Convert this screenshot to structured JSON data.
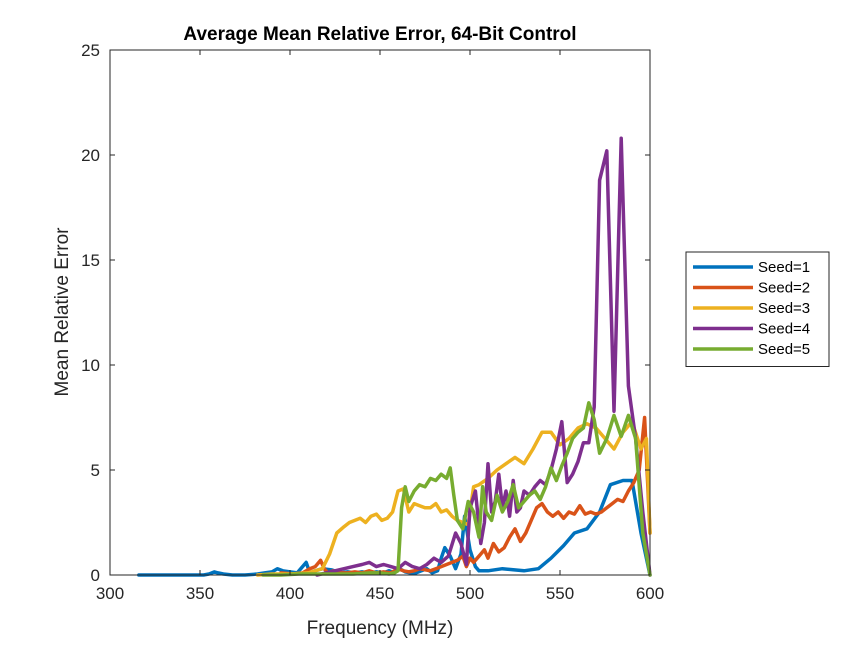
{
  "chart_data": {
    "type": "line",
    "title": "Average Mean Relative Error, 64-Bit Control",
    "xlabel": "Frequency (MHz)",
    "ylabel": "Mean Relative Error",
    "xlim": [
      300,
      600
    ],
    "ylim": [
      0,
      25
    ],
    "xticks": [
      "300",
      "350",
      "400",
      "450",
      "500",
      "550",
      "600"
    ],
    "yticks": [
      "0",
      "5",
      "10",
      "15",
      "20",
      "25"
    ],
    "grid": false,
    "legend": "outside-right",
    "series": [
      {
        "name": "Seed=1",
        "color": "#0072BD",
        "x": [
          316,
          330,
          345,
          352,
          355,
          358,
          360,
          363,
          368,
          375,
          382,
          386,
          390,
          393,
          396,
          400,
          404,
          406,
          409,
          411,
          414,
          418,
          423,
          428,
          432,
          436,
          440,
          444,
          448,
          452,
          455,
          458,
          461,
          464,
          467,
          470,
          473,
          476,
          479,
          482,
          484,
          486,
          489,
          492,
          495,
          497,
          500,
          503,
          505,
          510,
          518,
          524,
          530,
          538,
          545,
          552,
          558,
          565,
          572,
          578,
          585,
          590,
          595,
          600
        ],
        "y": [
          0,
          0,
          0,
          0,
          0.05,
          0.15,
          0.1,
          0.05,
          0,
          0,
          0.05,
          0.1,
          0.15,
          0.3,
          0.2,
          0.15,
          0.1,
          0.3,
          0.6,
          0.1,
          0.2,
          0.3,
          0.25,
          0.1,
          0.15,
          0.1,
          0.15,
          0.1,
          0.15,
          0.1,
          0.2,
          0.1,
          0.3,
          0.15,
          0.1,
          0.1,
          0.2,
          0.3,
          0.1,
          0.2,
          0.8,
          1.3,
          0.9,
          0.3,
          1.0,
          2.8,
          1.2,
          0.4,
          0.2,
          0.2,
          0.3,
          0.25,
          0.2,
          0.3,
          0.8,
          1.4,
          2.0,
          2.2,
          3.0,
          4.3,
          4.5,
          4.5,
          2.0,
          0
        ]
      },
      {
        "name": "Seed=2",
        "color": "#D95319",
        "x": [
          395,
          402,
          407,
          411,
          414,
          417,
          419,
          421,
          424,
          428,
          432,
          436,
          440,
          444,
          448,
          452,
          456,
          460,
          463,
          466,
          469,
          472,
          475,
          478,
          481,
          484,
          487,
          490,
          493,
          496,
          498,
          500,
          502,
          504,
          506,
          508,
          510,
          513,
          516,
          519,
          522,
          525,
          528,
          531,
          534,
          537,
          540,
          543,
          546,
          549,
          552,
          555,
          558,
          561,
          564,
          567,
          570,
          573,
          576,
          579,
          582,
          585,
          588,
          591,
          594,
          597,
          600
        ],
        "y": [
          0.1,
          0.05,
          0.1,
          0.3,
          0.4,
          0.7,
          0.3,
          0.1,
          0.2,
          0.1,
          0.1,
          0.15,
          0.1,
          0.2,
          0.1,
          0.15,
          0.1,
          0.3,
          0.2,
          0.15,
          0.2,
          0.3,
          0.25,
          0.2,
          0.3,
          0.4,
          0.5,
          0.6,
          0.7,
          0.9,
          0.4,
          0.8,
          0.6,
          0.8,
          1.0,
          1.2,
          0.8,
          1.5,
          1.1,
          1.3,
          1.8,
          2.2,
          1.6,
          2.0,
          2.6,
          3.2,
          3.4,
          3.0,
          2.8,
          3.0,
          2.7,
          3.0,
          2.9,
          3.3,
          2.9,
          3.0,
          2.9,
          3.0,
          3.2,
          3.4,
          3.6,
          3.5,
          4.0,
          4.4,
          5.0,
          7.5,
          2.0
        ]
      },
      {
        "name": "Seed=3",
        "color": "#EDB120",
        "x": [
          382,
          390,
          400,
          410,
          418,
          422,
          426,
          430,
          433,
          436,
          439,
          442,
          445,
          448,
          451,
          454,
          457,
          460,
          463,
          466,
          469,
          472,
          475,
          478,
          481,
          484,
          487,
          490,
          493,
          496,
          499,
          502,
          505,
          510,
          515,
          520,
          525,
          530,
          535,
          540,
          545,
          550,
          555,
          560,
          565,
          570,
          575,
          580,
          585,
          590,
          595,
          598,
          600
        ],
        "y": [
          0,
          0.05,
          0.05,
          0.1,
          0.3,
          1.0,
          2.0,
          2.3,
          2.5,
          2.6,
          2.7,
          2.5,
          2.8,
          2.9,
          2.6,
          2.7,
          3.0,
          4.0,
          4.1,
          3.0,
          3.4,
          3.3,
          3.2,
          3.2,
          3.4,
          3.0,
          3.1,
          2.8,
          2.6,
          2.5,
          2.4,
          4.2,
          4.3,
          4.6,
          5.0,
          5.3,
          5.6,
          5.3,
          6.0,
          6.8,
          6.8,
          6.2,
          6.5,
          7.0,
          7.2,
          7.0,
          6.5,
          6.0,
          6.8,
          7.3,
          6.0,
          6.5,
          2.0
        ]
      },
      {
        "name": "Seed=4",
        "color": "#7E2F8E",
        "x": [
          415,
          420,
          425,
          430,
          435,
          440,
          444,
          448,
          452,
          456,
          460,
          464,
          468,
          472,
          476,
          480,
          484,
          488,
          492,
          495,
          498,
          500,
          503,
          506,
          508,
          510,
          512,
          514,
          516,
          518,
          520,
          522,
          524,
          526,
          528,
          530,
          533,
          536,
          539,
          542,
          545,
          548,
          551,
          554,
          557,
          560,
          563,
          566,
          569,
          572,
          576,
          580,
          584,
          588,
          592,
          596,
          600
        ],
        "y": [
          0,
          0.1,
          0.2,
          0.3,
          0.4,
          0.5,
          0.6,
          0.4,
          0.5,
          0.4,
          0.3,
          0.6,
          0.4,
          0.3,
          0.5,
          0.8,
          0.6,
          0.9,
          2.0,
          1.5,
          0.5,
          3.2,
          4.0,
          1.5,
          2.5,
          5.3,
          3.0,
          3.5,
          4.8,
          3.2,
          4.0,
          2.8,
          4.5,
          3.0,
          3.2,
          4.0,
          3.8,
          4.2,
          4.5,
          4.3,
          5.0,
          6.0,
          7.3,
          4.4,
          4.8,
          5.4,
          6.3,
          6.3,
          8.0,
          18.8,
          20.2,
          7.8,
          20.8,
          9.0,
          6.5,
          3.0,
          0
        ]
      },
      {
        "name": "Seed=5",
        "color": "#77AC30",
        "x": [
          385,
          395,
          405,
          415,
          425,
          435,
          445,
          450,
          455,
          458,
          460,
          462,
          464,
          466,
          469,
          472,
          475,
          478,
          481,
          484,
          487,
          489,
          491,
          493,
          496,
          499,
          502,
          505,
          507,
          509,
          512,
          515,
          518,
          521,
          524,
          527,
          530,
          533,
          536,
          539,
          542,
          545,
          548,
          551,
          554,
          557,
          560,
          563,
          566,
          569,
          572,
          576,
          580,
          584,
          588,
          592,
          596,
          600
        ],
        "y": [
          0,
          0,
          0.05,
          0.05,
          0.05,
          0.05,
          0.1,
          0.1,
          0.05,
          0.1,
          0.2,
          3.2,
          4.2,
          3.5,
          4.0,
          4.3,
          4.2,
          4.6,
          4.5,
          4.8,
          4.6,
          5.1,
          3.8,
          2.6,
          2.2,
          3.5,
          3.0,
          1.8,
          4.2,
          3.0,
          2.6,
          3.8,
          3.0,
          3.5,
          4.3,
          3.2,
          3.5,
          3.8,
          4.0,
          3.6,
          4.2,
          5.1,
          4.5,
          5.2,
          5.8,
          6.5,
          6.8,
          7.0,
          8.2,
          7.4,
          5.8,
          6.5,
          7.6,
          6.6,
          7.6,
          6.5,
          2.0,
          0
        ]
      }
    ]
  }
}
